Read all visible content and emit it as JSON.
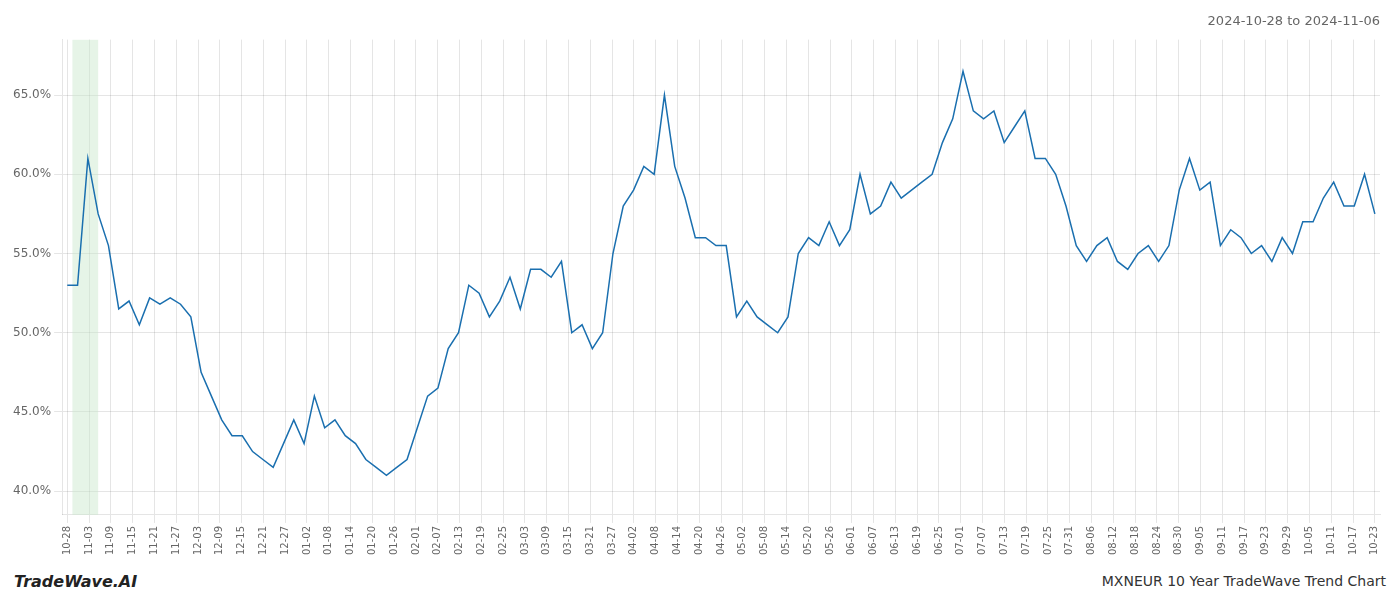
{
  "chart_data": {
    "type": "line",
    "title": "2024-10-28 to 2024-11-06",
    "annotations": [
      "TradeWave.AI",
      "MXNEUR 10 Year TradeWave Trend Chart"
    ],
    "color": "#1a6faf",
    "grid": true,
    "x": [
      0,
      1,
      2,
      3,
      4,
      5,
      6,
      7,
      8,
      9,
      10,
      11,
      12,
      13,
      14,
      15,
      16,
      17,
      18,
      19,
      20,
      21,
      22,
      23,
      24,
      25,
      26,
      27,
      28,
      29,
      30,
      31,
      32,
      33,
      34,
      35,
      36,
      37,
      38,
      39,
      40,
      41,
      42,
      43,
      44,
      45,
      46,
      47,
      48,
      49,
      50,
      51,
      52,
      53,
      54,
      55,
      56,
      57,
      58,
      59,
      60,
      61,
      62,
      63,
      64,
      65,
      66,
      67,
      68,
      69,
      70,
      71,
      72,
      73,
      74,
      75,
      76,
      77,
      78,
      79,
      80,
      81,
      82,
      83,
      84,
      85,
      86,
      87,
      88,
      89,
      90,
      91,
      92,
      93,
      94,
      95,
      96,
      97,
      98,
      99,
      100,
      101,
      102,
      103,
      104,
      105,
      106,
      107,
      108,
      109,
      110,
      111,
      112,
      113,
      114,
      115,
      116,
      117,
      118,
      119,
      120,
      121,
      122,
      123,
      124,
      125,
      126,
      127
    ],
    "values": [
      0.53,
      0.53,
      0.61,
      0.575,
      0.555,
      0.515,
      0.52,
      0.505,
      0.522,
      0.518,
      0.522,
      0.518,
      0.51,
      0.475,
      0.46,
      0.445,
      0.435,
      0.435,
      0.425,
      0.42,
      0.415,
      0.43,
      0.445,
      0.43,
      0.46,
      0.44,
      0.445,
      0.435,
      0.43,
      0.42,
      0.415,
      0.41,
      0.415,
      0.42,
      0.44,
      0.46,
      0.465,
      0.49,
      0.5,
      0.53,
      0.525,
      0.51,
      0.52,
      0.535,
      0.515,
      0.54,
      0.54,
      0.535,
      0.545,
      0.5,
      0.505,
      0.49,
      0.5,
      0.55,
      0.58,
      0.59,
      0.605,
      0.6,
      0.65,
      0.605,
      0.585,
      0.56,
      0.56,
      0.555,
      0.555,
      0.51,
      0.52,
      0.51,
      0.505,
      0.5,
      0.51,
      0.55,
      0.56,
      0.555,
      0.57,
      0.555,
      0.565,
      0.6,
      0.575,
      0.58,
      0.595,
      0.585,
      0.59,
      0.595,
      0.6,
      0.62,
      0.635,
      0.665,
      0.64,
      0.635,
      0.64,
      0.62,
      0.63,
      0.64,
      0.61,
      0.61,
      0.6,
      0.58,
      0.555,
      0.545,
      0.555,
      0.56,
      0.545,
      0.54,
      0.55,
      0.555,
      0.545,
      0.555,
      0.59,
      0.61,
      0.59,
      0.595,
      0.555,
      0.565,
      0.56,
      0.55,
      0.555,
      0.545,
      0.56,
      0.55,
      0.57,
      0.57,
      0.585,
      0.595,
      0.58,
      0.58,
      0.6,
      0.575
    ],
    "xlim": [
      -0.5,
      127.5
    ],
    "xticks": [
      {
        "value": 0,
        "label": "10-28"
      },
      {
        "value": 2.1166666666666667,
        "label": "11-03"
      },
      {
        "value": 4.233333333333333,
        "label": "11-09"
      },
      {
        "value": 6.35,
        "label": "11-15"
      },
      {
        "value": 8.466666666666667,
        "label": "11-21"
      },
      {
        "value": 10.583333333333334,
        "label": "11-27"
      },
      {
        "value": 12.7,
        "label": "12-03"
      },
      {
        "value": 14.816666666666666,
        "label": "12-09"
      },
      {
        "value": 16.933333333333334,
        "label": "12-15"
      },
      {
        "value": 19.05,
        "label": "12-21"
      },
      {
        "value": 21.166666666666668,
        "label": "12-27"
      },
      {
        "value": 23.283333333333335,
        "label": "01-02"
      },
      {
        "value": 25.4,
        "label": "01-08"
      },
      {
        "value": 27.516666666666666,
        "label": "01-14"
      },
      {
        "value": 29.633333333333333,
        "label": "01-20"
      },
      {
        "value": 31.75,
        "label": "01-26"
      },
      {
        "value": 33.86666666666667,
        "label": "02-01"
      },
      {
        "value": 35.983333333333334,
        "label": "02-07"
      },
      {
        "value": 38.1,
        "label": "02-13"
      },
      {
        "value": 40.21666666666667,
        "label": "02-19"
      },
      {
        "value": 42.333333333333336,
        "label": "02-25"
      },
      {
        "value": 44.45,
        "label": "03-03"
      },
      {
        "value": 46.56666666666667,
        "label": "03-09"
      },
      {
        "value": 48.68333333333333,
        "label": "03-15"
      },
      {
        "value": 50.8,
        "label": "03-21"
      },
      {
        "value": 52.916666666666664,
        "label": "03-27"
      },
      {
        "value": 55.03333333333333,
        "label": "04-02"
      },
      {
        "value": 57.15,
        "label": "04-08"
      },
      {
        "value": 59.266666666666666,
        "label": "04-14"
      },
      {
        "value": 61.38333333333333,
        "label": "04-20"
      },
      {
        "value": 63.5,
        "label": "04-26"
      },
      {
        "value": 65.61666666666666,
        "label": "05-02"
      },
      {
        "value": 67.73333333333333,
        "label": "05-08"
      },
      {
        "value": 69.85,
        "label": "05-14"
      },
      {
        "value": 71.96666666666667,
        "label": "05-20"
      },
      {
        "value": 74.08333333333333,
        "label": "05-26"
      },
      {
        "value": 76.2,
        "label": "06-01"
      },
      {
        "value": 78.31666666666666,
        "label": "06-07"
      },
      {
        "value": 80.43333333333334,
        "label": "06-13"
      },
      {
        "value": 82.55,
        "label": "06-19"
      },
      {
        "value": 84.66666666666667,
        "label": "06-25"
      },
      {
        "value": 86.78333333333333,
        "label": "07-01"
      },
      {
        "value": 88.9,
        "label": "07-07"
      },
      {
        "value": 91.01666666666667,
        "label": "07-13"
      },
      {
        "value": 93.13333333333334,
        "label": "07-19"
      },
      {
        "value": 95.25,
        "label": "07-25"
      },
      {
        "value": 97.36666666666667,
        "label": "07-31"
      },
      {
        "value": 99.48333333333333,
        "label": "08-06"
      },
      {
        "value": 101.6,
        "label": "08-12"
      },
      {
        "value": 103.71666666666667,
        "label": "08-18"
      },
      {
        "value": 105.83333333333333,
        "label": "08-24"
      },
      {
        "value": 107.95,
        "label": "08-30"
      },
      {
        "value": 110.06666666666666,
        "label": "09-05"
      },
      {
        "value": 112.18333333333334,
        "label": "09-11"
      },
      {
        "value": 114.3,
        "label": "09-17"
      },
      {
        "value": 116.41666666666667,
        "label": "09-23"
      },
      {
        "value": 118.53333333333333,
        "label": "09-29"
      },
      {
        "value": 120.65,
        "label": "10-05"
      },
      {
        "value": 122.76666666666667,
        "label": "10-11"
      },
      {
        "value": 124.88333333333334,
        "label": "10-17"
      },
      {
        "value": 127,
        "label": "10-23"
      }
    ],
    "ylim": [
      0.385,
      0.685
    ],
    "yticks": [
      {
        "value": 0.4,
        "label": "40.0%"
      },
      {
        "value": 0.45,
        "label": "45.0%"
      },
      {
        "value": 0.5,
        "label": "50.0%"
      },
      {
        "value": 0.55,
        "label": "55.0%"
      },
      {
        "value": 0.6,
        "label": "60.0%"
      },
      {
        "value": 0.65,
        "label": "65.0%"
      }
    ],
    "highlight": {
      "x": [
        0.5,
        3.0
      ],
      "color": "#c8e6c9"
    }
  }
}
